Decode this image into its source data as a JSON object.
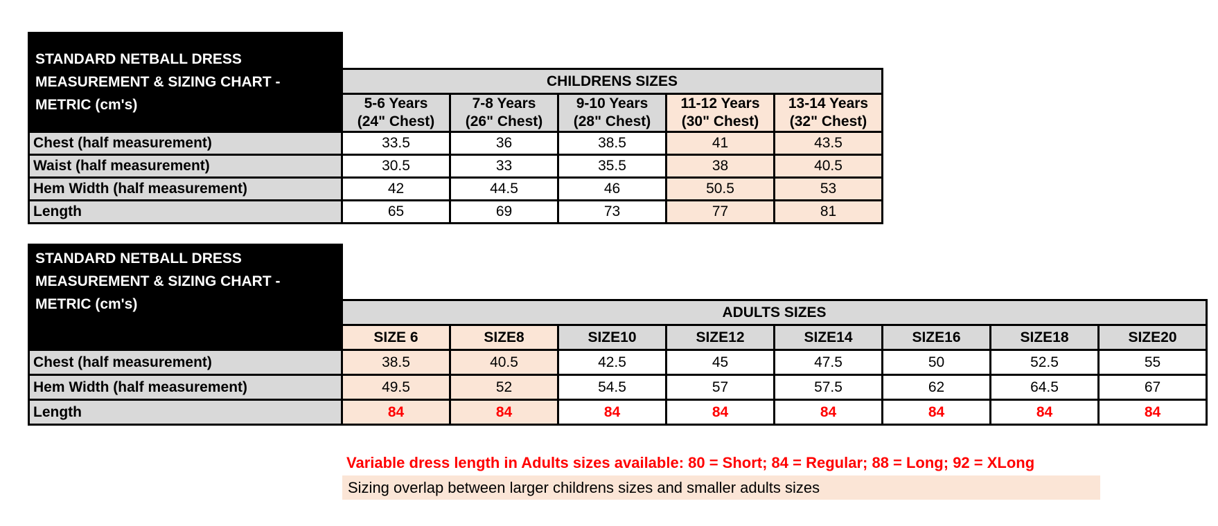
{
  "colors": {
    "header_grey": "#d9d9d9",
    "highlight_peach": "#fbe5d6",
    "accent_red": "#ff0000",
    "title_block_bg": "#000000",
    "title_block_text": "#ffffff"
  },
  "childrens_table": {
    "title_lines": [
      "STANDARD NETBALL DRESS",
      "MEASUREMENT & SIZING CHART -",
      "METRIC (cm's)"
    ],
    "group_header": "CHILDRENS SIZES",
    "columns": [
      {
        "line1": "5-6 Years",
        "line2": "(24\" Chest)",
        "highlight": false
      },
      {
        "line1": "7-8 Years",
        "line2": "(26\" Chest)",
        "highlight": false
      },
      {
        "line1": "9-10 Years",
        "line2": "(28\" Chest)",
        "highlight": false
      },
      {
        "line1": "11-12 Years",
        "line2": "(30\" Chest)",
        "highlight": true
      },
      {
        "line1": "13-14 Years",
        "line2": "(32\" Chest)",
        "highlight": true
      }
    ],
    "rows": [
      {
        "label": "Chest (half measurement)",
        "values": [
          "33.5",
          "36",
          "38.5",
          "41",
          "43.5"
        ],
        "red": false
      },
      {
        "label": "Waist (half measurement)",
        "values": [
          "30.5",
          "33",
          "35.5",
          "38",
          "40.5"
        ],
        "red": false
      },
      {
        "label": "Hem Width (half measurement)",
        "values": [
          "42",
          "44.5",
          "46",
          "50.5",
          "53"
        ],
        "red": false
      },
      {
        "label": "Length",
        "values": [
          "65",
          "69",
          "73",
          "77",
          "81"
        ],
        "red": false
      }
    ]
  },
  "adults_table": {
    "title_lines": [
      "STANDARD NETBALL DRESS",
      "MEASUREMENT & SIZING CHART -",
      "METRIC (cm's)"
    ],
    "group_header": "ADULTS SIZES",
    "columns": [
      {
        "label": "SIZE 6",
        "highlight": true
      },
      {
        "label": "SIZE8",
        "highlight": true
      },
      {
        "label": "SIZE10",
        "highlight": false
      },
      {
        "label": "SIZE12",
        "highlight": false
      },
      {
        "label": "SIZE14",
        "highlight": false
      },
      {
        "label": "SIZE16",
        "highlight": false
      },
      {
        "label": "SIZE18",
        "highlight": false
      },
      {
        "label": "SIZE20",
        "highlight": false
      }
    ],
    "rows": [
      {
        "label": "Chest (half measurement)",
        "values": [
          "38.5",
          "40.5",
          "42.5",
          "45",
          "47.5",
          "50",
          "52.5",
          "55"
        ],
        "red": false
      },
      {
        "label": "Hem Width (half measurement)",
        "values": [
          "49.5",
          "52",
          "54.5",
          "57",
          "57.5",
          "62",
          "64.5",
          "67"
        ],
        "red": false
      },
      {
        "label": "Length",
        "values": [
          "84",
          "84",
          "84",
          "84",
          "84",
          "84",
          "84",
          "84"
        ],
        "red": true
      }
    ]
  },
  "notes": {
    "variable_length": "Variable dress length in Adults sizes available: 80 = Short; 84 = Regular; 88 = Long; 92 = XLong",
    "sizing_overlap": "Sizing overlap between larger childrens sizes and smaller adults sizes"
  },
  "chart_data": [
    {
      "type": "table",
      "title": "STANDARD NETBALL DRESS MEASUREMENT & SIZING CHART - METRIC (cm's)",
      "section": "CHILDRENS SIZES",
      "columns": [
        "5-6 Years (24\" Chest)",
        "7-8 Years (26\" Chest)",
        "9-10 Years (28\" Chest)",
        "11-12 Years (30\" Chest)",
        "13-14 Years (32\" Chest)"
      ],
      "highlighted_columns": [
        "11-12 Years (30\" Chest)",
        "13-14 Years (32\" Chest)"
      ],
      "rows": [
        {
          "label": "Chest (half measurement)",
          "values": [
            33.5,
            36,
            38.5,
            41,
            43.5
          ]
        },
        {
          "label": "Waist (half measurement)",
          "values": [
            30.5,
            33,
            35.5,
            38,
            40.5
          ]
        },
        {
          "label": "Hem Width (half measurement)",
          "values": [
            42,
            44.5,
            46,
            50.5,
            53
          ]
        },
        {
          "label": "Length",
          "values": [
            65,
            69,
            73,
            77,
            81
          ]
        }
      ]
    },
    {
      "type": "table",
      "title": "STANDARD NETBALL DRESS MEASUREMENT & SIZING CHART - METRIC (cm's)",
      "section": "ADULTS SIZES",
      "columns": [
        "SIZE 6",
        "SIZE8",
        "SIZE10",
        "SIZE12",
        "SIZE14",
        "SIZE16",
        "SIZE18",
        "SIZE20"
      ],
      "highlighted_columns": [
        "SIZE 6",
        "SIZE8"
      ],
      "rows": [
        {
          "label": "Chest (half measurement)",
          "values": [
            38.5,
            40.5,
            42.5,
            45,
            47.5,
            50,
            52.5,
            55
          ]
        },
        {
          "label": "Hem Width (half measurement)",
          "values": [
            49.5,
            52,
            54.5,
            57,
            57.5,
            62,
            64.5,
            67
          ]
        },
        {
          "label": "Length",
          "values": [
            84,
            84,
            84,
            84,
            84,
            84,
            84,
            84
          ],
          "color": "red"
        }
      ],
      "annotations": [
        "Variable dress length in Adults sizes available: 80 = Short; 84 = Regular; 88 = Long; 92 = XLong",
        "Sizing overlap between larger childrens sizes and smaller adults sizes"
      ]
    }
  ]
}
